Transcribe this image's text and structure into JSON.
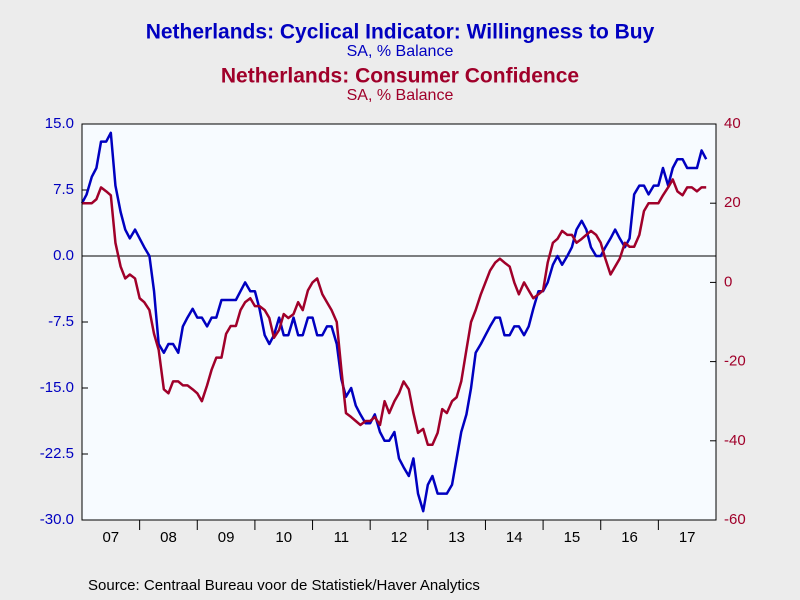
{
  "chart_data": {
    "type": "line",
    "series": [
      {
        "name": "Netherlands: Cyclical Indicator: Willingness to Buy",
        "unit": "SA, % Balance",
        "color": "#0000c0",
        "axis": "y",
        "values": [
          6,
          7,
          9,
          10,
          13,
          13,
          14,
          8,
          5,
          3,
          2,
          3,
          2,
          1,
          0,
          -4,
          -10,
          -11,
          -10,
          -10,
          -11,
          -8,
          -7,
          -6,
          -7,
          -7,
          -8,
          -7,
          -7,
          -5,
          -5,
          -5,
          -5,
          -4,
          -3,
          -4,
          -4,
          -6,
          -9,
          -10,
          -9,
          -7,
          -9,
          -9,
          -7,
          -9,
          -9,
          -7,
          -7,
          -9,
          -9,
          -8,
          -8,
          -10,
          -14,
          -16,
          -15,
          -17,
          -18,
          -19,
          -19,
          -18,
          -20,
          -21,
          -21,
          -20,
          -23,
          -24,
          -25,
          -23,
          -27,
          -29,
          -26,
          -25,
          -27,
          -27,
          -27,
          -26,
          -23,
          -20,
          -18,
          -15,
          -11,
          -10,
          -9,
          -8,
          -7,
          -7,
          -9,
          -9,
          -8,
          -8,
          -9,
          -8,
          -6,
          -4,
          -4,
          -3,
          -1,
          0,
          -1,
          0,
          1,
          3,
          4,
          3,
          1,
          0,
          0,
          1,
          2,
          3,
          2,
          1,
          2,
          7,
          8,
          8,
          7,
          8,
          8,
          10,
          8,
          10,
          11,
          11,
          10,
          10,
          10,
          12,
          11
        ]
      },
      {
        "name": "Netherlands: Consumer Confidence",
        "unit": "SA, % Balance",
        "color": "#a0002a",
        "axis": "y2",
        "values": [
          20,
          20,
          20,
          21,
          24,
          23,
          22,
          10,
          4,
          1,
          2,
          1,
          -4,
          -5,
          -7,
          -13,
          -17,
          -27,
          -28,
          -25,
          -25,
          -26,
          -26,
          -27,
          -28,
          -30,
          -26,
          -22,
          -19,
          -19,
          -13,
          -11,
          -11,
          -7,
          -5,
          -4,
          -6,
          -6,
          -7,
          -9,
          -14,
          -12,
          -8,
          -9,
          -8,
          -5,
          -7,
          -2,
          0,
          1,
          -3,
          -5,
          -7,
          -10,
          -22,
          -33,
          -34,
          -35,
          -36,
          -35,
          -35,
          -34,
          -36,
          -30,
          -33,
          -30,
          -28,
          -25,
          -27,
          -33,
          -38,
          -37,
          -41,
          -41,
          -38,
          -32,
          -33,
          -30,
          -29,
          -25,
          -17,
          -10,
          -7,
          -3,
          0,
          3,
          5,
          6,
          5,
          4,
          0,
          -3,
          0,
          -2,
          -4,
          -3,
          -2,
          5,
          10,
          11,
          13,
          12,
          12,
          10,
          11,
          12,
          13,
          12,
          10,
          6,
          2,
          4,
          6,
          10,
          9,
          9,
          12,
          18,
          20,
          20,
          20,
          22,
          24,
          26,
          23,
          22,
          24,
          24,
          23,
          24,
          24
        ]
      }
    ],
    "x": [
      2007,
      2007.08,
      2007.17,
      2007.25,
      2007.33,
      2007.42,
      2007.5,
      2007.58,
      2007.67,
      2007.75,
      2007.83,
      2007.92,
      2008,
      2008.08,
      2008.17,
      2008.25,
      2008.33,
      2008.42,
      2008.5,
      2008.58,
      2008.67,
      2008.75,
      2008.83,
      2008.92,
      2009,
      2009.08,
      2009.17,
      2009.25,
      2009.33,
      2009.42,
      2009.5,
      2009.58,
      2009.67,
      2009.75,
      2009.83,
      2009.92,
      2010,
      2010.08,
      2010.17,
      2010.25,
      2010.33,
      2010.42,
      2010.5,
      2010.58,
      2010.67,
      2010.75,
      2010.83,
      2010.92,
      2011,
      2011.08,
      2011.17,
      2011.25,
      2011.33,
      2011.42,
      2011.5,
      2011.58,
      2011.67,
      2011.75,
      2011.83,
      2011.92,
      2012,
      2012.08,
      2012.17,
      2012.25,
      2012.33,
      2012.42,
      2012.5,
      2012.58,
      2012.67,
      2012.75,
      2012.83,
      2012.92,
      2013,
      2013.08,
      2013.17,
      2013.25,
      2013.33,
      2013.42,
      2013.5,
      2013.58,
      2013.67,
      2013.75,
      2013.83,
      2013.92,
      2014,
      2014.08,
      2014.17,
      2014.25,
      2014.33,
      2014.42,
      2014.5,
      2014.58,
      2014.67,
      2014.75,
      2014.83,
      2014.92,
      2015,
      2015.08,
      2015.17,
      2015.25,
      2015.33,
      2015.42,
      2015.5,
      2015.58,
      2015.67,
      2015.75,
      2015.83,
      2015.92,
      2016,
      2016.08,
      2016.17,
      2016.25,
      2016.33,
      2016.42,
      2016.5,
      2016.58,
      2016.67,
      2016.75,
      2016.83,
      2016.92,
      2017,
      2017.08,
      2017.17,
      2017.25,
      2017.33,
      2017.42,
      2017.5,
      2017.58,
      2017.67,
      2017.75,
      2017.83
    ],
    "xlim": [
      2007,
      2018
    ],
    "xticks": [
      {
        "value": 2007.5,
        "label": "07"
      },
      {
        "value": 2008.5,
        "label": "08"
      },
      {
        "value": 2009.5,
        "label": "09"
      },
      {
        "value": 2010.5,
        "label": "10"
      },
      {
        "value": 2011.5,
        "label": "11"
      },
      {
        "value": 2012.5,
        "label": "12"
      },
      {
        "value": 2013.5,
        "label": "13"
      },
      {
        "value": 2014.5,
        "label": "14"
      },
      {
        "value": 2015.5,
        "label": "15"
      },
      {
        "value": 2016.5,
        "label": "16"
      },
      {
        "value": 2017.5,
        "label": "17"
      }
    ],
    "ylim": [
      -30,
      15
    ],
    "yticks": [
      {
        "value": 15,
        "label": "15.0"
      },
      7.5,
      {
        "value": 0,
        "label": "0.0"
      },
      -7.5,
      {
        "value": -15,
        "label": "-15.0"
      },
      -22.5,
      {
        "value": -30,
        "label": "-30.0"
      }
    ],
    "y2lim": [
      -60,
      40
    ],
    "y2ticks": [
      40,
      20,
      0,
      -20,
      -40,
      -60
    ],
    "source": "Source:  Centraal Bureau voor de Statistiek/Haver Analytics"
  }
}
